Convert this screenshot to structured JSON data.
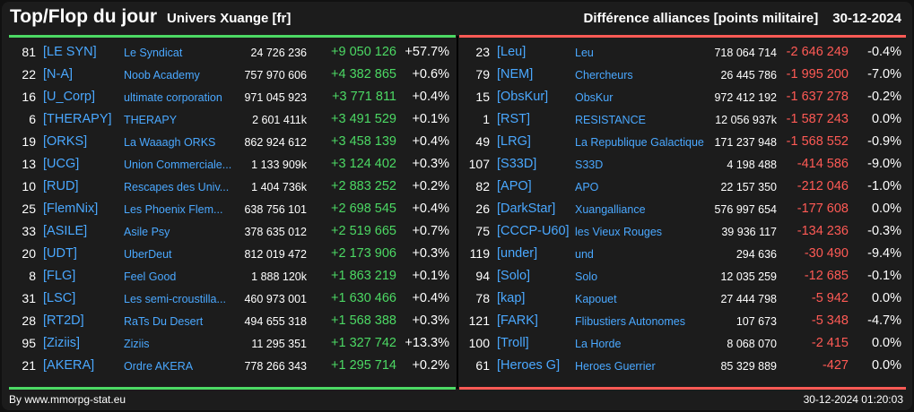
{
  "header": {
    "title": "Top/Flop du jour",
    "universe": "Univers Xuange [fr]",
    "subject": "Différence alliances [points militaire]",
    "date": "30-12-2024"
  },
  "colors": {
    "positive": "#4cd964",
    "negative": "#ff5a55",
    "link": "#4aa8ff"
  },
  "top": [
    {
      "rank": "81",
      "tag": "[LE SYN]",
      "name": "Le Syndicat",
      "points": "24 726 236",
      "diff": "+9 050 126",
      "pct": "+57.7%"
    },
    {
      "rank": "22",
      "tag": "[N-A]",
      "name": "Noob Academy",
      "points": "757 970 606",
      "diff": "+4 382 865",
      "pct": "+0.6%"
    },
    {
      "rank": "16",
      "tag": "[U_Corp]",
      "name": "ultimate corporation",
      "points": "971 045 923",
      "diff": "+3 771 811",
      "pct": "+0.4%"
    },
    {
      "rank": "6",
      "tag": "[THERAPY]",
      "name": "THERAPY",
      "points": "2 601 411k",
      "diff": "+3 491 529",
      "pct": "+0.1%"
    },
    {
      "rank": "19",
      "tag": "[ORKS]",
      "name": "La Waaagh ORKS",
      "points": "862 924 612",
      "diff": "+3 458 139",
      "pct": "+0.4%"
    },
    {
      "rank": "13",
      "tag": "[UCG]",
      "name": "Union Commerciale...",
      "points": "1 133 909k",
      "diff": "+3 124 402",
      "pct": "+0.3%"
    },
    {
      "rank": "10",
      "tag": "[RUD]",
      "name": "Rescapes des Univ...",
      "points": "1 404 736k",
      "diff": "+2 883 252",
      "pct": "+0.2%"
    },
    {
      "rank": "25",
      "tag": "[FlemNix]",
      "name": "Les Phoenix Flem...",
      "points": "638 756 101",
      "diff": "+2 698 545",
      "pct": "+0.4%"
    },
    {
      "rank": "33",
      "tag": "[ASILE]",
      "name": "Asile Psy",
      "points": "378 635 012",
      "diff": "+2 519 665",
      "pct": "+0.7%"
    },
    {
      "rank": "20",
      "tag": "[UDT]",
      "name": "UberDeut",
      "points": "812 019 472",
      "diff": "+2 173 906",
      "pct": "+0.3%"
    },
    {
      "rank": "8",
      "tag": "[FLG]",
      "name": "Feel Good",
      "points": "1 888 120k",
      "diff": "+1 863 219",
      "pct": "+0.1%"
    },
    {
      "rank": "31",
      "tag": "[LSC]",
      "name": "Les semi-croustilla...",
      "points": "460 973 001",
      "diff": "+1 630 466",
      "pct": "+0.4%"
    },
    {
      "rank": "28",
      "tag": "[RT2D]",
      "name": "RaTs Du Desert",
      "points": "494 655 318",
      "diff": "+1 568 388",
      "pct": "+0.3%"
    },
    {
      "rank": "95",
      "tag": "[Ziziis]",
      "name": "Ziziis",
      "points": "11 295 351",
      "diff": "+1 327 742",
      "pct": "+13.3%"
    },
    {
      "rank": "21",
      "tag": "[AKERA]",
      "name": "Ordre AKERA",
      "points": "778 266 343",
      "diff": "+1 295 714",
      "pct": "+0.2%"
    }
  ],
  "flop": [
    {
      "rank": "23",
      "tag": "[Leu]",
      "name": "Leu",
      "points": "718 064 714",
      "diff": "-2 646 249",
      "pct": "-0.4%"
    },
    {
      "rank": "79",
      "tag": "[NEM]",
      "name": "Chercheurs",
      "points": "26 445 786",
      "diff": "-1 995 200",
      "pct": "-7.0%"
    },
    {
      "rank": "15",
      "tag": "[ObsKur]",
      "name": "ObsKur",
      "points": "972 412 192",
      "diff": "-1 637 278",
      "pct": "-0.2%"
    },
    {
      "rank": "1",
      "tag": "[RST]",
      "name": "RESISTANCE",
      "points": "12 056 937k",
      "diff": "-1 587 243",
      "pct": "0.0%"
    },
    {
      "rank": "49",
      "tag": "[LRG]",
      "name": "La Republique Galactique",
      "points": "171 237 948",
      "diff": "-1 568 552",
      "pct": "-0.9%"
    },
    {
      "rank": "107",
      "tag": "[S33D]",
      "name": "S33D",
      "points": "4 198 488",
      "diff": "-414 586",
      "pct": "-9.0%"
    },
    {
      "rank": "82",
      "tag": "[APO]",
      "name": "APO",
      "points": "22 157 350",
      "diff": "-212 046",
      "pct": "-1.0%"
    },
    {
      "rank": "26",
      "tag": "[DarkStar]",
      "name": "Xuangalliance",
      "points": "576 997 654",
      "diff": "-177 608",
      "pct": "0.0%"
    },
    {
      "rank": "75",
      "tag": "[CCCP-U60]",
      "name": "les Vieux Rouges",
      "points": "39 936 117",
      "diff": "-134 236",
      "pct": "-0.3%"
    },
    {
      "rank": "119",
      "tag": "[under]",
      "name": "und",
      "points": "294 636",
      "diff": "-30 490",
      "pct": "-9.4%"
    },
    {
      "rank": "94",
      "tag": "[Solo]",
      "name": "Solo",
      "points": "12 035 259",
      "diff": "-12 685",
      "pct": "-0.1%"
    },
    {
      "rank": "78",
      "tag": "[kap]",
      "name": "Kapouet",
      "points": "27 444 798",
      "diff": "-5 942",
      "pct": "0.0%"
    },
    {
      "rank": "121",
      "tag": "[FARK]",
      "name": "Flibustiers Autonomes",
      "points": "107 673",
      "diff": "-5 348",
      "pct": "-4.7%"
    },
    {
      "rank": "100",
      "tag": "[Troll]",
      "name": "La Horde",
      "points": "8 068 070",
      "diff": "-2 415",
      "pct": "0.0%"
    },
    {
      "rank": "61",
      "tag": "[Heroes G]",
      "name": "Heroes Guerrier",
      "points": "85 329 889",
      "diff": "-427",
      "pct": "0.0%"
    }
  ],
  "footer": {
    "source": "By www.mmorpg-stat.eu",
    "timestamp": "30-12-2024 01:20:03"
  }
}
